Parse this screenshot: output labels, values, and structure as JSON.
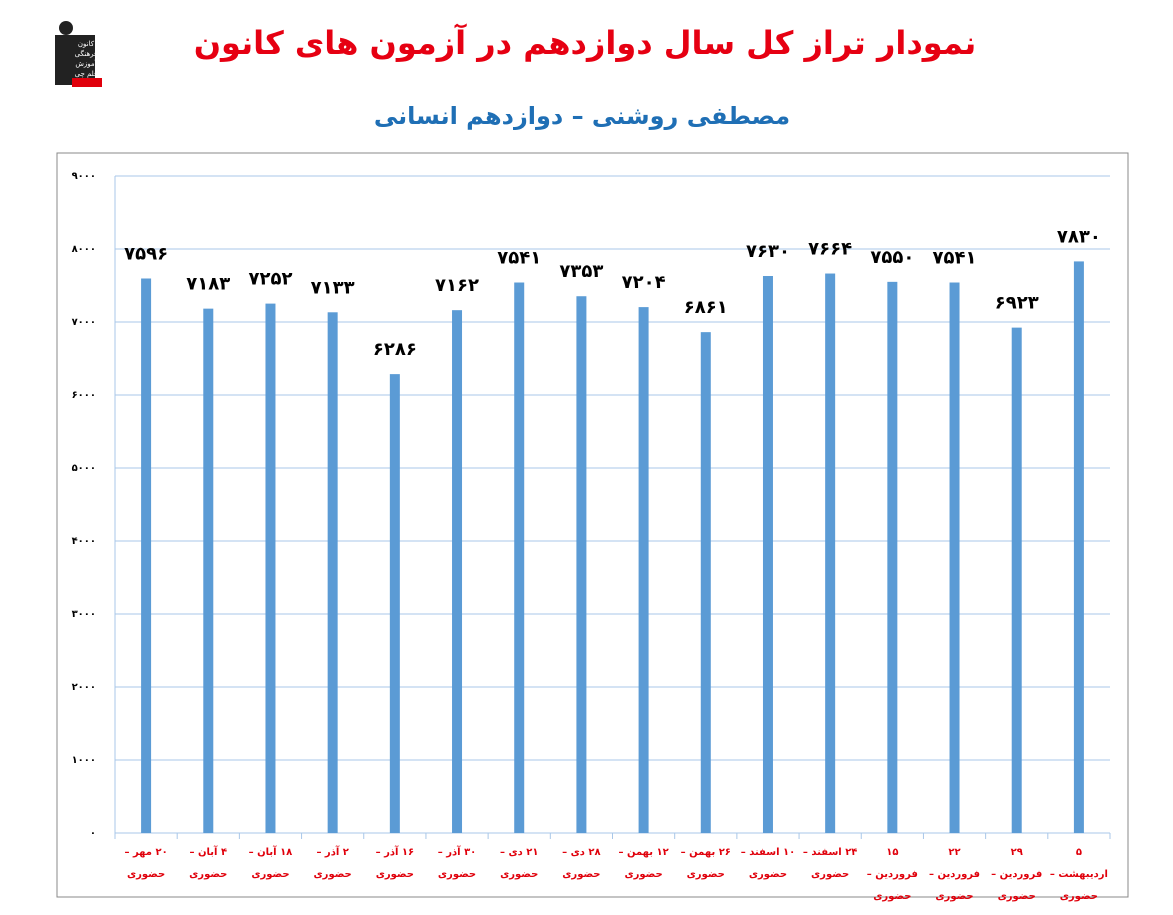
{
  "logo": {
    "lines": [
      "کانون",
      "فرهنگی",
      "آموزش",
      "قلم چی"
    ]
  },
  "chart_data": {
    "type": "bar",
    "title": "نمودار تراز کل سال دوازدهم در آزمون های کانون",
    "subtitle": "مصطفی روشنی – دوازدهم انسانی",
    "categories": [
      "۲۰ مهر – حضوری",
      "۴ آبان – حضوری",
      "۱۸ آبان – حضوری",
      "۲ آذر – حضوری",
      "۱۶ آذر – حضوری",
      "۳۰ آذر – حضوری",
      "۲۱ دی – حضوری",
      "۲۸ دی – حضوری",
      "۱۲ بهمن – حضوری",
      "۲۶ بهمن – حضوری",
      "۱۰ اسفند – حضوری",
      "۲۴ اسفند – حضوری",
      "۱۵ فروردین – حضوری",
      "۲۲ فروردین – حضوری",
      "۲۹ فروردین – حضوری",
      "۵ اردیبهشت – حضوری"
    ],
    "values": [
      7596,
      7183,
      7252,
      7133,
      6286,
      7162,
      7541,
      7353,
      7204,
      6861,
      7630,
      7664,
      7550,
      7541,
      6923,
      7830
    ],
    "value_labels": [
      "۷۵۹۶",
      "۷۱۸۳",
      "۷۲۵۲",
      "۷۱۳۳",
      "۶۲۸۶",
      "۷۱۶۲",
      "۷۵۴۱",
      "۷۳۵۳",
      "۷۲۰۴",
      "۶۸۶۱",
      "۷۶۳۰",
      "۷۶۶۴",
      "۷۵۵۰",
      "۷۵۴۱",
      "۶۹۲۳",
      "۷۸۳۰"
    ],
    "color": "#5b9bd5",
    "ylim": [
      0,
      9000
    ],
    "yticks": [
      {
        "value": 0,
        "label": "۰"
      },
      {
        "value": 1000,
        "label": "۱۰۰۰"
      },
      {
        "value": 2000,
        "label": "۲۰۰۰"
      },
      {
        "value": 3000,
        "label": "۳۰۰۰"
      },
      {
        "value": 4000,
        "label": "۴۰۰۰"
      },
      {
        "value": 5000,
        "label": "۵۰۰۰"
      },
      {
        "value": 6000,
        "label": "۶۰۰۰"
      },
      {
        "value": 7000,
        "label": "۷۰۰۰"
      },
      {
        "value": 8000,
        "label": "۸۰۰۰"
      },
      {
        "value": 9000,
        "label": "۹۰۰۰"
      }
    ],
    "grid": true
  }
}
